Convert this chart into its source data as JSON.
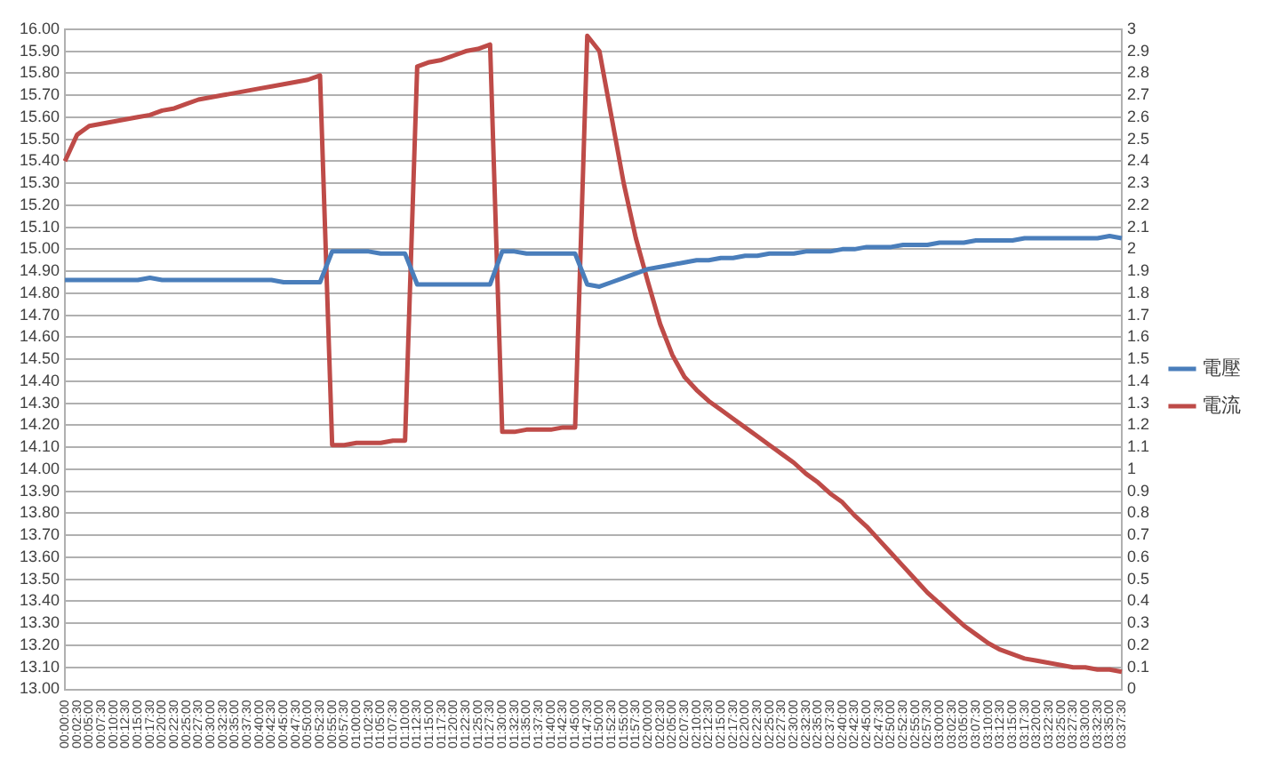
{
  "chart_data": {
    "type": "line",
    "categories": [
      "00:00:00",
      "00:02:30",
      "00:05:00",
      "00:07:30",
      "00:10:00",
      "00:12:30",
      "00:15:00",
      "00:17:30",
      "00:20:00",
      "00:22:30",
      "00:25:00",
      "00:27:30",
      "00:30:00",
      "00:32:30",
      "00:35:00",
      "00:37:30",
      "00:40:00",
      "00:42:30",
      "00:45:00",
      "00:47:30",
      "00:50:00",
      "00:52:30",
      "00:55:00",
      "00:57:30",
      "01:00:00",
      "01:02:30",
      "01:05:00",
      "01:07:30",
      "01:10:00",
      "01:12:30",
      "01:15:00",
      "01:17:30",
      "01:20:00",
      "01:22:30",
      "01:25:00",
      "01:27:30",
      "01:30:00",
      "01:32:30",
      "01:35:00",
      "01:37:30",
      "01:40:00",
      "01:42:30",
      "01:45:00",
      "01:47:30",
      "01:50:00",
      "01:52:30",
      "01:55:00",
      "01:57:30",
      "02:00:00",
      "02:02:30",
      "02:05:00",
      "02:07:30",
      "02:10:00",
      "02:12:30",
      "02:15:00",
      "02:17:30",
      "02:20:00",
      "02:22:30",
      "02:25:00",
      "02:27:30",
      "02:30:00",
      "02:32:30",
      "02:35:00",
      "02:37:30",
      "02:40:00",
      "02:42:30",
      "02:45:00",
      "02:47:30",
      "02:50:00",
      "02:52:30",
      "02:55:00",
      "02:57:30",
      "03:00:00",
      "03:02:30",
      "03:05:00",
      "03:07:30",
      "03:10:00",
      "03:12:30",
      "03:15:00",
      "03:17:30",
      "03:20:00",
      "03:22:30",
      "03:25:00",
      "03:27:30",
      "03:30:00",
      "03:32:30",
      "03:35:00",
      "03:37:30"
    ],
    "series": [
      {
        "name": "電壓",
        "color": "#4a7ebb",
        "values": [
          14.86,
          14.86,
          14.86,
          14.86,
          14.86,
          14.86,
          14.86,
          14.87,
          14.86,
          14.86,
          14.86,
          14.86,
          14.86,
          14.86,
          14.86,
          14.86,
          14.86,
          14.86,
          14.85,
          14.85,
          14.85,
          14.85,
          14.99,
          14.99,
          14.99,
          14.99,
          14.98,
          14.98,
          14.98,
          14.84,
          14.84,
          14.84,
          14.84,
          14.84,
          14.84,
          14.84,
          14.99,
          14.99,
          14.98,
          14.98,
          14.98,
          14.98,
          14.98,
          14.84,
          14.83,
          14.85,
          14.87,
          14.89,
          14.91,
          14.92,
          14.93,
          14.94,
          14.95,
          14.95,
          14.96,
          14.96,
          14.97,
          14.97,
          14.98,
          14.98,
          14.98,
          14.99,
          14.99,
          14.99,
          15.0,
          15.0,
          15.01,
          15.01,
          15.01,
          15.02,
          15.02,
          15.02,
          15.03,
          15.03,
          15.03,
          15.04,
          15.04,
          15.04,
          15.04,
          15.05,
          15.05,
          15.05,
          15.05,
          15.05,
          15.05,
          15.05,
          15.06,
          15.05
        ]
      },
      {
        "name": "電流",
        "color": "#be4b48",
        "axis": "y2",
        "values": [
          2.4,
          2.52,
          2.56,
          2.57,
          2.58,
          2.59,
          2.6,
          2.61,
          2.63,
          2.64,
          2.66,
          2.68,
          2.69,
          2.7,
          2.71,
          2.72,
          2.73,
          2.74,
          2.75,
          2.76,
          2.77,
          2.79,
          1.11,
          1.11,
          1.12,
          1.12,
          1.12,
          1.13,
          1.13,
          2.83,
          2.85,
          2.86,
          2.88,
          2.9,
          2.91,
          2.93,
          1.17,
          1.17,
          1.18,
          1.18,
          1.18,
          1.19,
          1.19,
          2.97,
          2.9,
          2.6,
          2.3,
          2.05,
          1.85,
          1.66,
          1.52,
          1.42,
          1.36,
          1.31,
          1.27,
          1.23,
          1.19,
          1.15,
          1.11,
          1.07,
          1.03,
          0.98,
          0.94,
          0.89,
          0.85,
          0.79,
          0.74,
          0.68,
          0.62,
          0.56,
          0.5,
          0.44,
          0.39,
          0.34,
          0.29,
          0.25,
          0.21,
          0.18,
          0.16,
          0.14,
          0.13,
          0.12,
          0.11,
          0.1,
          0.1,
          0.09,
          0.09,
          0.08
        ]
      }
    ],
    "ylim": [
      13,
      16
    ],
    "yticks": [
      {
        "value": 13,
        "label": "13.00"
      },
      {
        "value": 13.1,
        "label": "13.10"
      },
      {
        "value": 13.2,
        "label": "13.20"
      },
      {
        "value": 13.3,
        "label": "13.30"
      },
      {
        "value": 13.4,
        "label": "13.40"
      },
      {
        "value": 13.5,
        "label": "13.50"
      },
      {
        "value": 13.6,
        "label": "13.60"
      },
      {
        "value": 13.7,
        "label": "13.70"
      },
      {
        "value": 13.8,
        "label": "13.80"
      },
      {
        "value": 13.9,
        "label": "13.90"
      },
      {
        "value": 14,
        "label": "14.00"
      },
      {
        "value": 14.1,
        "label": "14.10"
      },
      {
        "value": 14.2,
        "label": "14.20"
      },
      {
        "value": 14.3,
        "label": "14.30"
      },
      {
        "value": 14.4,
        "label": "14.40"
      },
      {
        "value": 14.5,
        "label": "14.50"
      },
      {
        "value": 14.6,
        "label": "14.60"
      },
      {
        "value": 14.7,
        "label": "14.70"
      },
      {
        "value": 14.8,
        "label": "14.80"
      },
      {
        "value": 14.9,
        "label": "14.90"
      },
      {
        "value": 15,
        "label": "15.00"
      },
      {
        "value": 15.1,
        "label": "15.10"
      },
      {
        "value": 15.2,
        "label": "15.20"
      },
      {
        "value": 15.3,
        "label": "15.30"
      },
      {
        "value": 15.4,
        "label": "15.40"
      },
      {
        "value": 15.5,
        "label": "15.50"
      },
      {
        "value": 15.6,
        "label": "15.60"
      },
      {
        "value": 15.7,
        "label": "15.70"
      },
      {
        "value": 15.8,
        "label": "15.80"
      },
      {
        "value": 15.9,
        "label": "15.90"
      },
      {
        "value": 16,
        "label": "16.00"
      }
    ],
    "y2lim": [
      0,
      3
    ],
    "y2ticks": [
      0,
      0.1,
      0.2,
      0.3,
      0.4,
      0.5,
      0.6,
      0.7,
      0.8,
      0.9,
      1,
      1.1,
      1.2,
      1.3,
      1.4,
      1.5,
      1.6,
      1.7,
      1.8,
      1.9,
      2,
      2.1,
      2.2,
      2.3,
      2.4,
      2.5,
      2.6,
      2.7,
      2.8,
      2.9,
      3
    ],
    "grid": "y",
    "legend": "right",
    "marker": "none"
  }
}
